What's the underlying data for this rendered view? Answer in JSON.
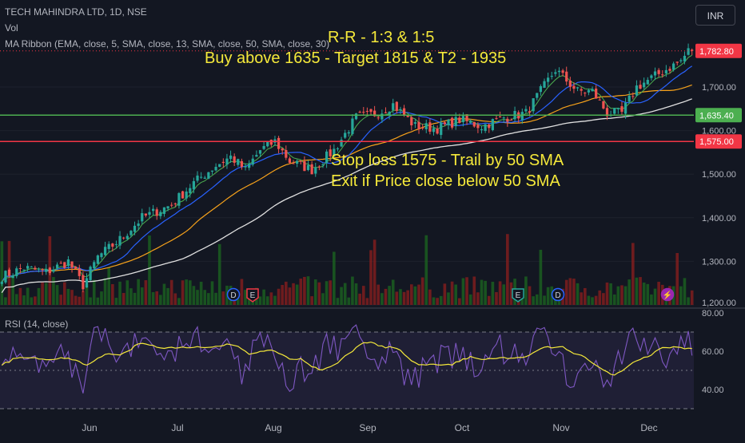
{
  "header": {
    "symbol": "TECH MAHINDRA LTD, 1D, NSE",
    "vol_label": "Vol",
    "ma_ribbon": "MA Ribbon (EMA, close, 5, SMA, close, 13, SMA, close, 50, SMA, close, 30)",
    "currency": "INR"
  },
  "annotations": {
    "rr": "R-R - 1:3 & 1:5",
    "buy": "Buy above 1635 - Target 1815 & T2 - 1935",
    "stop": "Stop loss 1575 - Trail by 50 SMA",
    "exit": "Exit if Price close below 50 SMA"
  },
  "colors": {
    "background": "#131722",
    "up": "#26a69a",
    "down": "#ef5350",
    "ema5": "#4caf50",
    "sma13": "#2962ff",
    "sma50": "#f7a21b",
    "sma30_long": "#e0e0e0",
    "rsi": "#7e57c2",
    "rsi_ma": "#f5e93a",
    "buy_line": "#4caf50",
    "stop_line": "#f23645",
    "annotation_text": "#f5e93a"
  },
  "chart_data": {
    "type": "candlestick",
    "price_axis": {
      "range": [
        1200,
        1830
      ],
      "ticks": [
        1200,
        1300,
        1400,
        1500,
        1600,
        1700
      ],
      "tick_labels": [
        "1,200.00",
        "1,300.00",
        "1,400.00",
        "1,500.00",
        "1,600.00",
        "1,700.00"
      ]
    },
    "x_axis": {
      "months": [
        "Jun",
        "Jul",
        "Aug",
        "Sep",
        "Oct",
        "Nov",
        "Dec"
      ]
    },
    "price_labels": [
      {
        "value": 1782.8,
        "text": "1,782.80",
        "color": "#f23645"
      },
      {
        "value": 1635.4,
        "text": "1,635.40",
        "color": "#4caf50"
      },
      {
        "value": 1575.0,
        "text": "1,575.00",
        "color": "#f23645"
      }
    ],
    "horizontal_lines": [
      {
        "name": "buy-level-line",
        "value": 1635.4,
        "color": "#4caf50"
      },
      {
        "name": "stop-level-line",
        "value": 1575.0,
        "color": "#f23645"
      }
    ],
    "candle_keypoints": [
      [
        0,
        1265
      ],
      [
        6,
        1285
      ],
      [
        12,
        1275
      ],
      [
        18,
        1300
      ],
      [
        22,
        1245
      ],
      [
        26,
        1310
      ],
      [
        32,
        1350
      ],
      [
        38,
        1400
      ],
      [
        46,
        1430
      ],
      [
        52,
        1480
      ],
      [
        58,
        1520
      ],
      [
        62,
        1540
      ],
      [
        66,
        1510
      ],
      [
        70,
        1555
      ],
      [
        74,
        1575
      ],
      [
        78,
        1530
      ],
      [
        84,
        1510
      ],
      [
        90,
        1555
      ],
      [
        96,
        1630
      ],
      [
        102,
        1640
      ],
      [
        106,
        1660
      ],
      [
        112,
        1610
      ],
      [
        118,
        1605
      ],
      [
        124,
        1625
      ],
      [
        130,
        1610
      ],
      [
        136,
        1630
      ],
      [
        142,
        1640
      ],
      [
        146,
        1690
      ],
      [
        150,
        1740
      ],
      [
        156,
        1690
      ],
      [
        160,
        1690
      ],
      [
        164,
        1640
      ],
      [
        168,
        1640
      ],
      [
        172,
        1700
      ],
      [
        176,
        1720
      ],
      [
        180,
        1740
      ],
      [
        184,
        1760
      ],
      [
        186,
        1782.8
      ]
    ],
    "event_markers": [
      {
        "label": "D",
        "color": "#2962ff"
      },
      {
        "label": "E",
        "color": "#f23645"
      },
      {
        "label": "E",
        "color": "#26a69a"
      },
      {
        "label": "D",
        "color": "#2962ff"
      },
      {
        "label": "⚡",
        "color": "#9c27b0"
      }
    ],
    "rsi": {
      "label": "RSI (14, close)",
      "range": [
        30,
        80
      ],
      "ticks": [
        40,
        60,
        80
      ],
      "tick_labels": [
        "40.00",
        "60.00",
        "80.00"
      ],
      "upper_band": 70,
      "lower_band": 30
    }
  }
}
